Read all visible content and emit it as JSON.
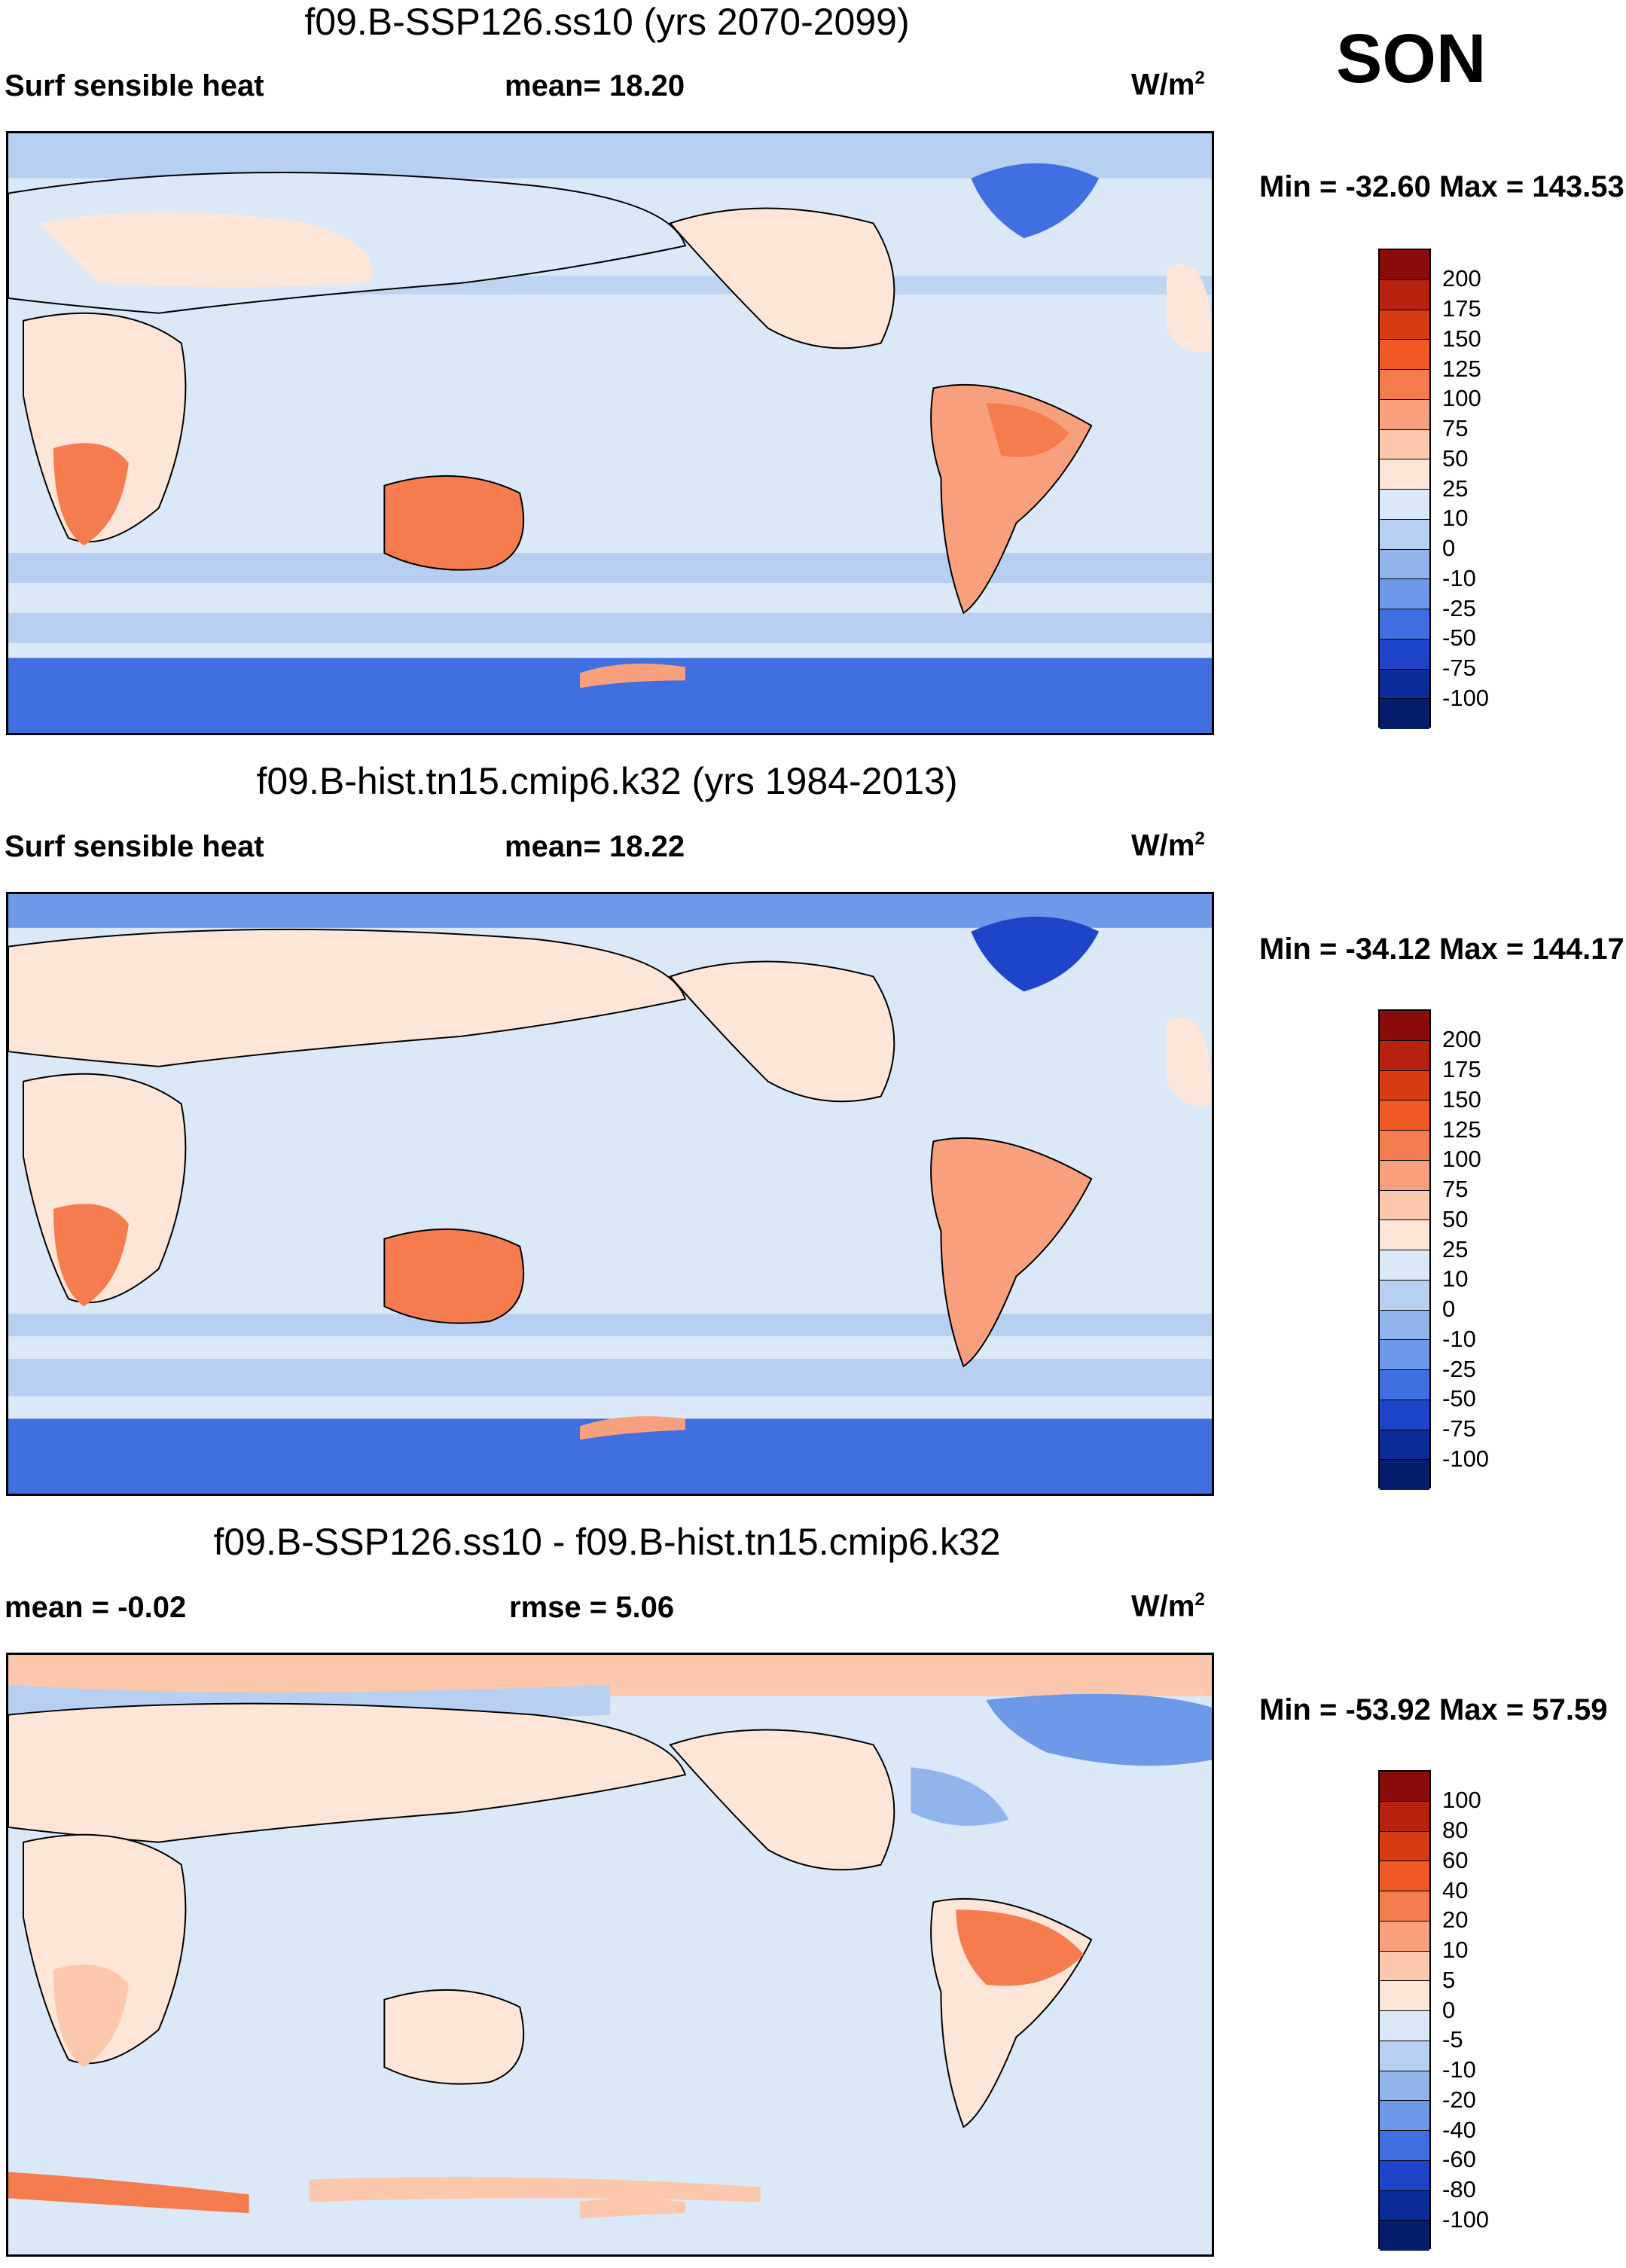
{
  "season": "SON",
  "panels": [
    {
      "title": "f09.B-SSP126.ss10 (yrs 2070-2099)",
      "left_label": "Surf sensible heat",
      "center_label": "mean=  18.20",
      "units": "W/m",
      "units_sup": "2",
      "minmax": "Min = -32.60 Max = 143.53",
      "levels": [
        "200",
        "175",
        "150",
        "125",
        "100",
        "75",
        "50",
        "25",
        "10",
        "0",
        "-10",
        "-25",
        "-50",
        "-75",
        "-100"
      ]
    },
    {
      "title": "f09.B-hist.tn15.cmip6.k32 (yrs 1984-2013)",
      "left_label": "Surf sensible heat",
      "center_label": "mean=  18.22",
      "units": "W/m",
      "units_sup": "2",
      "minmax": "Min = -34.12 Max = 144.17",
      "levels": [
        "200",
        "175",
        "150",
        "125",
        "100",
        "75",
        "50",
        "25",
        "10",
        "0",
        "-10",
        "-25",
        "-50",
        "-75",
        "-100"
      ]
    },
    {
      "title": "f09.B-SSP126.ss10 - f09.B-hist.tn15.cmip6.k32",
      "left_label": "mean =  -0.02",
      "center_label": "rmse =    5.06",
      "units": "W/m",
      "units_sup": "2",
      "minmax": "Min = -53.92 Max =  57.59",
      "levels": [
        "100",
        "80",
        "60",
        "40",
        "20",
        "10",
        "5",
        "0",
        "-5",
        "-10",
        "-20",
        "-40",
        "-60",
        "-80",
        "-100"
      ]
    }
  ],
  "colorbar_colors": [
    "#8c0b0b",
    "#b7230f",
    "#d83c12",
    "#f15a24",
    "#f57c4f",
    "#f8a07e",
    "#fcc8ad",
    "#fde6d8",
    "#dbe8f7",
    "#b7cff0",
    "#92b4ec",
    "#6e98e8",
    "#3f6fe0",
    "#1e45c9",
    "#0c2c9a",
    "#061d6c"
  ]
}
